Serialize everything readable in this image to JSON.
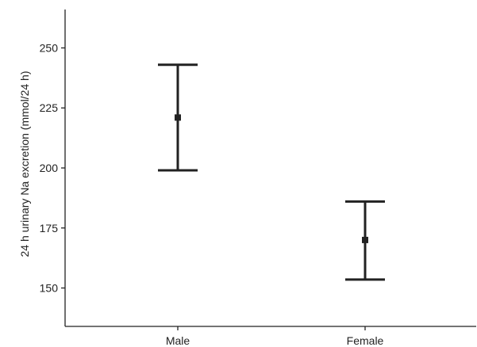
{
  "chart_data": {
    "type": "errorbar",
    "title": "",
    "xlabel": "",
    "ylabel": "24 h urinary Na excretion (mmol/24 h)",
    "ylim": [
      134,
      266
    ],
    "yticks": [
      150,
      175,
      200,
      225,
      250
    ],
    "categories": [
      "Male",
      "Female"
    ],
    "series": [
      {
        "means": [
          221,
          170
        ],
        "lower": [
          199,
          153.5
        ],
        "upper": [
          243,
          186
        ]
      }
    ],
    "grid": false,
    "legend": "none",
    "color": "#222222"
  }
}
